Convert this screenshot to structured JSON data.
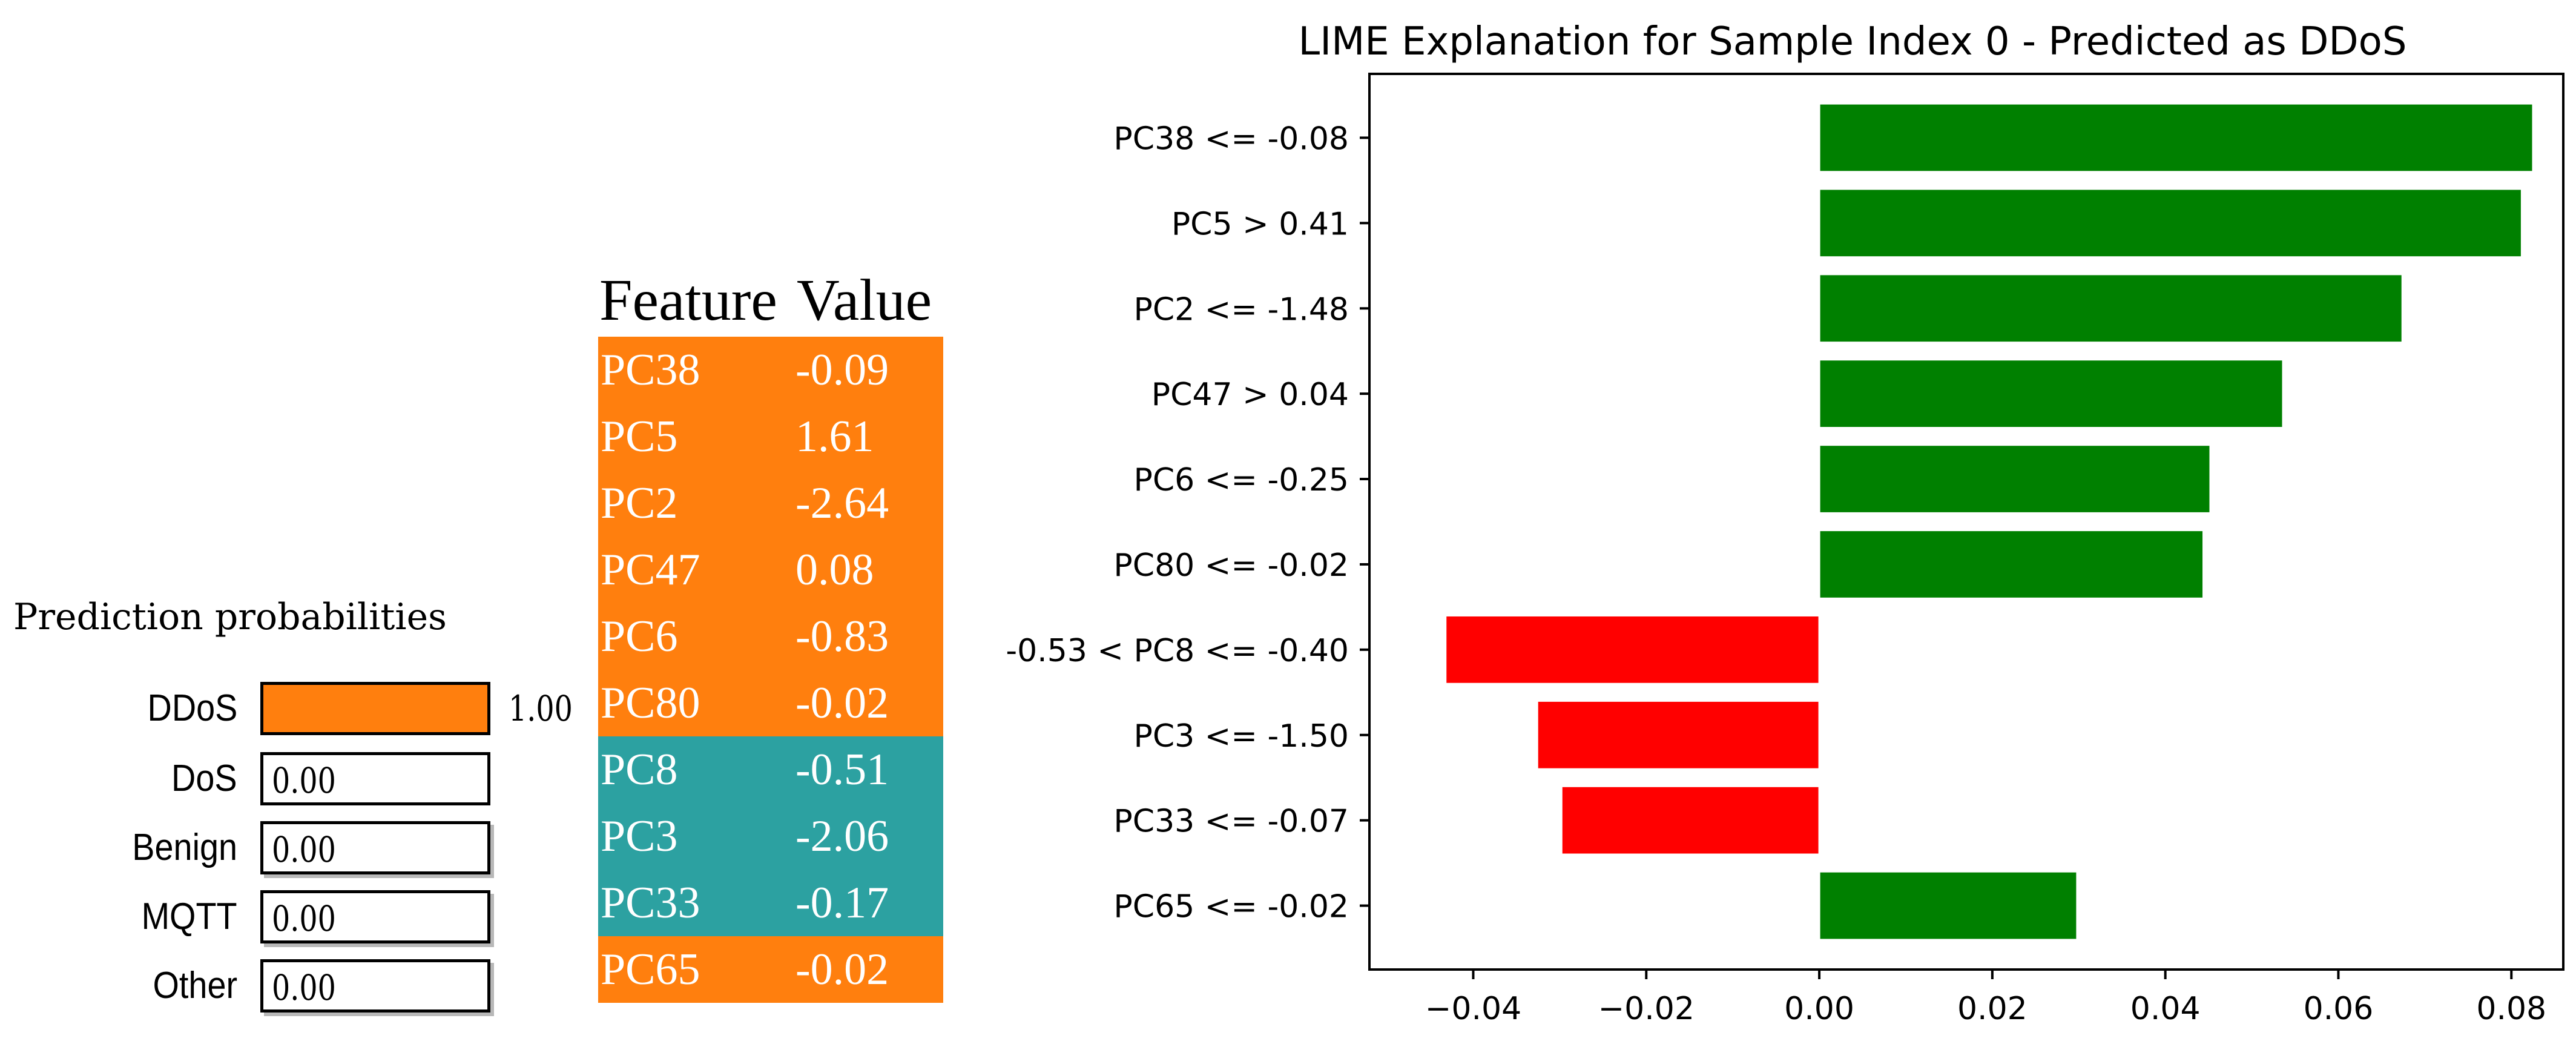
{
  "prediction_probabilities": {
    "title": "Prediction probabilities",
    "items": [
      {
        "label": "DDoS",
        "value": 1.0,
        "display": "1.00"
      },
      {
        "label": "DoS",
        "value": 0.0,
        "display": "0.00"
      },
      {
        "label": "Benign",
        "value": 0.0,
        "display": "0.00"
      },
      {
        "label": "MQTT",
        "value": 0.0,
        "display": "0.00"
      },
      {
        "label": "Other",
        "value": 0.0,
        "display": "0.00"
      }
    ]
  },
  "feature_table": {
    "header_feature": "Feature",
    "header_value": "Value",
    "rows": [
      {
        "feature": "PC38",
        "value": "-0.09",
        "class": "DDoS"
      },
      {
        "feature": "PC5",
        "value": "1.61",
        "class": "DDoS"
      },
      {
        "feature": "PC2",
        "value": "-2.64",
        "class": "DDoS"
      },
      {
        "feature": "PC47",
        "value": "0.08",
        "class": "DDoS"
      },
      {
        "feature": "PC6",
        "value": "-0.83",
        "class": "DDoS"
      },
      {
        "feature": "PC80",
        "value": "-0.02",
        "class": "DDoS"
      },
      {
        "feature": "PC8",
        "value": "-0.51",
        "class": "NOT DDoS"
      },
      {
        "feature": "PC3",
        "value": "-2.06",
        "class": "NOT DDoS"
      },
      {
        "feature": "PC33",
        "value": "-0.17",
        "class": "NOT DDoS"
      },
      {
        "feature": "PC65",
        "value": "-0.02",
        "class": "DDoS"
      }
    ]
  },
  "colors": {
    "ddos_orange": "#ff7f0e",
    "other_teal": "#2ca1a1",
    "positive_green": "#008000",
    "negative_red": "#ff0000"
  },
  "chart_data": {
    "type": "bar",
    "orientation": "horizontal",
    "title": "LIME Explanation for Sample Index 0 - Predicted as DDoS",
    "xlabel": "",
    "ylabel": "",
    "xlim": [
      -0.052,
      0.086
    ],
    "xticks": [
      -0.04,
      -0.02,
      0.0,
      0.02,
      0.04,
      0.06,
      0.08
    ],
    "xtick_labels": [
      "−0.04",
      "−0.02",
      "0.00",
      "0.02",
      "0.04",
      "0.06",
      "0.08"
    ],
    "categories": [
      "PC38 <= -0.08",
      "PC5 > 0.41",
      "PC2 <= -1.48",
      "PC47 > 0.04",
      "PC6 <= -0.25",
      "PC80 <= -0.02",
      "-0.53 < PC8 <= -0.40",
      "PC3 <= -1.50",
      "PC33 <= -0.07",
      "PC65 <= -0.02"
    ],
    "values": [
      0.0825,
      0.0812,
      0.0674,
      0.0536,
      0.0452,
      0.0444,
      -0.0432,
      -0.0326,
      -0.0298,
      0.0298
    ]
  }
}
